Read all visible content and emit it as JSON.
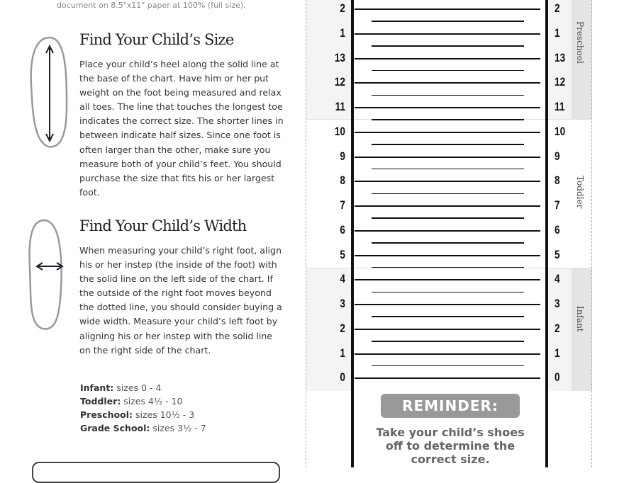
{
  "top_note": "document on 8.5\"x11\" paper at 100% (full size).",
  "size_section": {
    "title": "Find Your Child’s Size",
    "body": "Place your child’s heel along the solid line at the base of the chart. Have him or her put weight on the foot being measured and relax all toes. The line that touches the longest toe indicates the correct size. The shorter lines in between indicate half sizes. Since one foot is often larger than the other, make sure you measure both of your child’s feet. You should purchase the size that fits his or her largest foot."
  },
  "width_section": {
    "title": "Find Your Child’s Width",
    "body": "When measuring your child’s right foot, align his or her instep (the inside of the foot) with the solid line on the left side of the chart. If the outside of the right foot moves beyond the dotted line, you should consider buying a wide width. Measure your child’s left foot by aligning his or her instep with the solid line on the right side of the chart."
  },
  "legend": [
    {
      "label": "Infant:",
      "value": "sizes 0 - 4"
    },
    {
      "label": "Toddler:",
      "value": "sizes 4½ - 10"
    },
    {
      "label": "Preschool:",
      "value": "sizes 10½ - 3"
    },
    {
      "label": "Grade School:",
      "value": "sizes 3½ - 7"
    }
  ],
  "chart": {
    "sizes": [
      "2",
      "1",
      "13",
      "12",
      "11",
      "10",
      "9",
      "8",
      "7",
      "6",
      "5",
      "4",
      "3",
      "2",
      "1",
      "0"
    ],
    "categories": {
      "preschool": "Preschool",
      "toddler": "Toddler",
      "infant": "Infant"
    },
    "band_color": "#f4f4f4",
    "category_band_color": "#e4e4e4"
  },
  "reminder": {
    "title": "REMINDER:",
    "text": "Take your child’s shoes off to determine the correct size."
  }
}
